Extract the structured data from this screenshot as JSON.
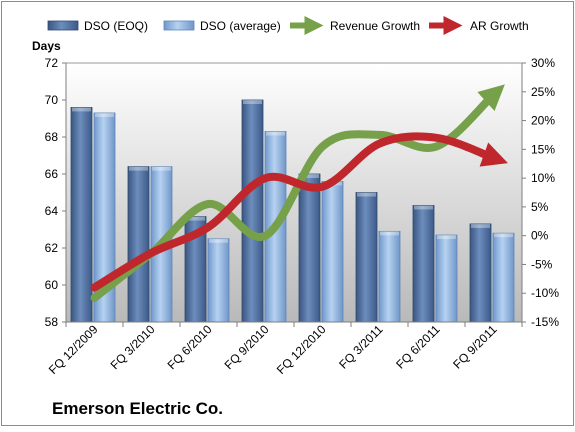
{
  "chart_data": {
    "type": "bar",
    "title": "",
    "company": "Emerson Electric Co.",
    "categories": [
      "FQ 12/2009",
      "FQ 3/2010",
      "FQ 6/2010",
      "FQ 9/2010",
      "FQ 12/2010",
      "FQ 3/2011",
      "FQ 6/2011",
      "FQ 9/2011"
    ],
    "left_axis": {
      "label": "Days",
      "range": [
        58,
        72
      ],
      "ticks": [
        58,
        60,
        62,
        64,
        66,
        68,
        70,
        72
      ],
      "tick_labels": [
        "58",
        "60",
        "62",
        "64",
        "66",
        "68",
        "70",
        "72"
      ]
    },
    "right_axis": {
      "label": "",
      "range": [
        -15,
        30
      ],
      "ticks": [
        -15,
        -10,
        -5,
        0,
        5,
        10,
        15,
        20,
        25,
        30
      ],
      "tick_labels": [
        "-15%",
        "-10%",
        "-5%",
        "0%",
        "5%",
        "10%",
        "15%",
        "20%",
        "25%",
        "30%"
      ]
    },
    "bar_series": [
      {
        "name": "DSO (EOQ)",
        "values": [
          69.6,
          66.4,
          63.7,
          70.0,
          66.0,
          65.0,
          64.3,
          63.3
        ],
        "color": "#4f6f9f"
      },
      {
        "name": "DSO (average)",
        "values": [
          69.3,
          66.4,
          62.5,
          68.3,
          65.6,
          62.9,
          62.7,
          62.8
        ],
        "color": "#8db3e2"
      }
    ],
    "line_series": [
      {
        "name": "Revenue Growth",
        "values": [
          -10.8,
          -3.0,
          5.5,
          0.0,
          15.5,
          17.5,
          15.5,
          24.5
        ],
        "color": "#77a04a"
      },
      {
        "name": "AR Growth",
        "values": [
          -9.0,
          -3.0,
          1.5,
          10.0,
          8.5,
          16.0,
          17.0,
          13.5
        ],
        "color": "#c0272d"
      }
    ],
    "legend_position": "top",
    "grid": false
  }
}
